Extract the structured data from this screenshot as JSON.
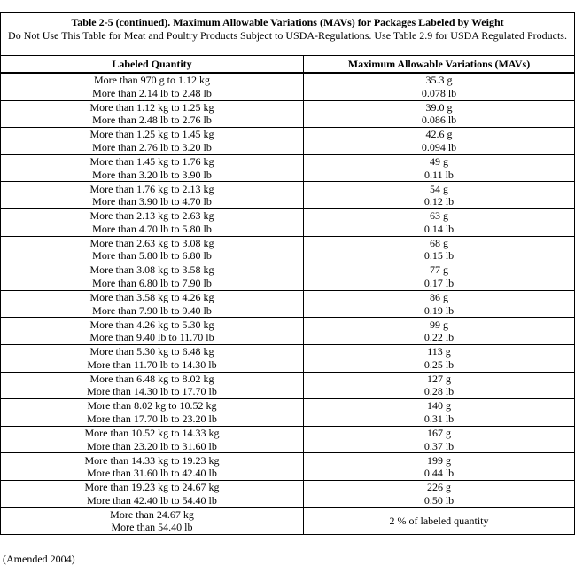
{
  "title": "Table 2-5 (continued).  Maximum Allowable Variations (MAVs) for Packages Labeled by Weight",
  "subtitle": "Do Not Use This Table for Meat and Poultry Products Subject to USDA-Regulations.  Use Table 2.9 for USDA Regulated Products.",
  "headers": [
    "Labeled Quantity",
    "Maximum Allowable Variations (MAVs)"
  ],
  "rows": [
    {
      "q1": "More than 970 g to 1.12 kg",
      "q2": "More than 2.14 lb to 2.48 lb",
      "m1": "35.3 g",
      "m2": "0.078 lb"
    },
    {
      "q1": "More than 1.12 kg to 1.25 kg",
      "q2": "More than 2.48 lb to 2.76 lb",
      "m1": "39.0 g",
      "m2": "0.086 lb"
    },
    {
      "q1": "More than 1.25 kg to 1.45 kg",
      "q2": "More than 2.76 lb to 3.20 lb",
      "m1": "42.6 g",
      "m2": "0.094 lb"
    },
    {
      "q1": "More than 1.45 kg to 1.76 kg",
      "q2": "More than 3.20 lb to 3.90 lb",
      "m1": "49 g",
      "m2": "0.11 lb"
    },
    {
      "q1": "More than 1.76 kg to 2.13 kg",
      "q2": "More than 3.90 lb to 4.70 lb",
      "m1": "54 g",
      "m2": "0.12 lb"
    },
    {
      "q1": "More than 2.13 kg to 2.63 kg",
      "q2": "More than 4.70 lb to 5.80 lb",
      "m1": "63 g",
      "m2": "0.14 lb"
    },
    {
      "q1": "More than 2.63 kg to 3.08 kg",
      "q2": "More than 5.80 lb to 6.80 lb",
      "m1": "68 g",
      "m2": "0.15 lb"
    },
    {
      "q1": "More than 3.08 kg to 3.58 kg",
      "q2": "More than 6.80 lb to 7.90 lb",
      "m1": "77 g",
      "m2": "0.17 lb"
    },
    {
      "q1": "More than 3.58 kg to 4.26 kg",
      "q2": "More than 7.90 lb to 9.40 lb",
      "m1": "86 g",
      "m2": "0.19 lb"
    },
    {
      "q1": "More than 4.26 kg to 5.30 kg",
      "q2": "More than 9.40 lb to 11.70 lb",
      "m1": "99 g",
      "m2": "0.22 lb"
    },
    {
      "q1": "More than 5.30 kg to 6.48 kg",
      "q2": "More than 11.70 lb to 14.30 lb",
      "m1": "113 g",
      "m2": "0.25 lb"
    },
    {
      "q1": "More than 6.48 kg to 8.02 kg",
      "q2": "More than 14.30 lb to 17.70 lb",
      "m1": "127 g",
      "m2": "0.28 lb"
    },
    {
      "q1": "More than 8.02 kg to 10.52 kg",
      "q2": "More than 17.70 lb to 23.20 lb",
      "m1": "140 g",
      "m2": "0.31 lb"
    },
    {
      "q1": "More than 10.52 kg to 14.33 kg",
      "q2": "More than 23.20 lb to 31.60 lb",
      "m1": "167 g",
      "m2": "0.37 lb"
    },
    {
      "q1": "More than 14.33 kg to 19.23 kg",
      "q2": "More than 31.60 lb to 42.40 lb",
      "m1": "199 g",
      "m2": "0.44 lb"
    },
    {
      "q1": "More than 19.23 kg to 24.67 kg",
      "q2": "More than 42.40 lb to 54.40 lb",
      "m1": "226 g",
      "m2": "0.50 lb"
    },
    {
      "q1": "More than 24.67 kg",
      "q2": "More than 54.40 lb",
      "m1": "2 % of labeled quantity",
      "m2": ""
    }
  ],
  "footnote": "(Amended 2004)"
}
